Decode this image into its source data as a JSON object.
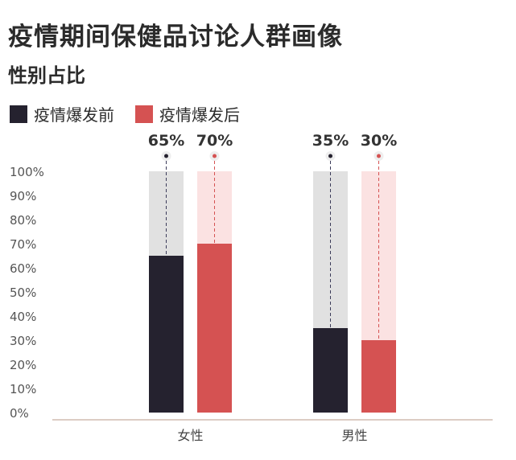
{
  "header": {
    "title": "疫情期间保健品讨论人群画像",
    "subtitle": "性别占比"
  },
  "colors": {
    "before": "#25222f",
    "before_bg": "#e1e1e1",
    "after": "#d55252",
    "after_bg": "#fbe2e2",
    "axis": "#b89a8a"
  },
  "chart_data": {
    "type": "bar",
    "categories": [
      "女性",
      "男性"
    ],
    "series": [
      {
        "name": "疫情爆发前",
        "values": [
          65,
          35
        ],
        "labels": [
          "65%",
          "35%"
        ]
      },
      {
        "name": "疫情爆发后",
        "values": [
          70,
          30
        ],
        "labels": [
          "70%",
          "30%"
        ]
      }
    ],
    "y_ticks": [
      "0%",
      "10%",
      "20%",
      "30%",
      "40%",
      "50%",
      "60%",
      "70%",
      "80%",
      "90%",
      "100%"
    ],
    "ylim": [
      0,
      100
    ],
    "xlabel": "",
    "ylabel": "",
    "legend_position": "top-left",
    "grid": false
  }
}
